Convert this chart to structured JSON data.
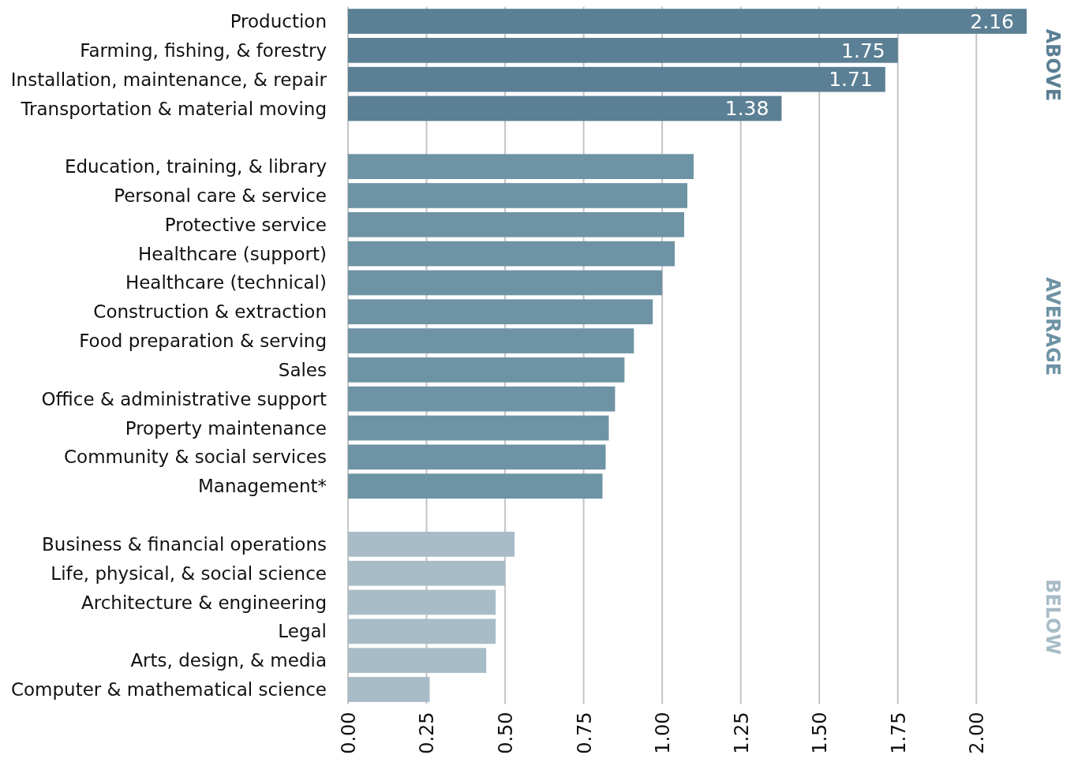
{
  "chart_data": {
    "type": "bar",
    "orientation": "horizontal",
    "categories": [
      "Production",
      "Farming, fishing, & forestry",
      "Installation, maintenance, & repair",
      "Transportation & material moving",
      null,
      "Education, training, & library",
      "Personal care & service",
      "Protective service",
      "Healthcare (support)",
      "Healthcare (technical)",
      "Construction & extraction",
      "Food preparation & serving",
      "Sales",
      "Office & administrative support",
      "Property maintenance",
      "Community & social services",
      "Management*",
      null,
      "Business & financial operations",
      "Life, physical, & social science",
      "Architecture & engineering",
      "Legal",
      "Arts, design, & media",
      "Computer & mathematical science"
    ],
    "series": [
      {
        "name": "ABOVE",
        "color": "#5b7f94",
        "values": [
          2.16,
          1.75,
          1.71,
          1.38,
          null,
          null,
          null,
          null,
          null,
          null,
          null,
          null,
          null,
          null,
          null,
          null,
          null,
          null,
          null,
          null,
          null,
          null,
          null,
          null
        ],
        "value_labels": [
          "2.16",
          "1.75",
          "1.71",
          "1.38",
          null,
          null,
          null,
          null,
          null,
          null,
          null,
          null,
          null,
          null,
          null,
          null,
          null,
          null,
          null,
          null,
          null,
          null,
          null,
          null
        ]
      },
      {
        "name": "AVERAGE",
        "color": "#6e93a4",
        "values": [
          null,
          null,
          null,
          null,
          null,
          1.1,
          1.08,
          1.07,
          1.04,
          1.0,
          0.97,
          0.91,
          0.88,
          0.85,
          0.83,
          0.82,
          0.81,
          null,
          null,
          null,
          null,
          null,
          null,
          null
        ]
      },
      {
        "name": "BELOW",
        "color": "#a8bcc7",
        "values": [
          null,
          null,
          null,
          null,
          null,
          null,
          null,
          null,
          null,
          null,
          null,
          null,
          null,
          null,
          null,
          null,
          null,
          null,
          0.53,
          0.5,
          0.47,
          0.47,
          0.44,
          0.26
        ]
      }
    ],
    "xlim": [
      0,
      2.16
    ],
    "xticks": [
      {
        "value": 0,
        "label": "0.00"
      },
      {
        "value": 0.25,
        "label": "0.25"
      },
      {
        "value": 0.5,
        "label": "0.50"
      },
      {
        "value": 0.75,
        "label": "0.75"
      },
      {
        "value": 1,
        "label": "1.00"
      },
      {
        "value": 1.25,
        "label": "1.25"
      },
      {
        "value": 1.5,
        "label": "1.50"
      },
      {
        "value": 1.75,
        "label": "1.75"
      },
      {
        "value": 2,
        "label": "2.00"
      }
    ],
    "grid": "x"
  }
}
